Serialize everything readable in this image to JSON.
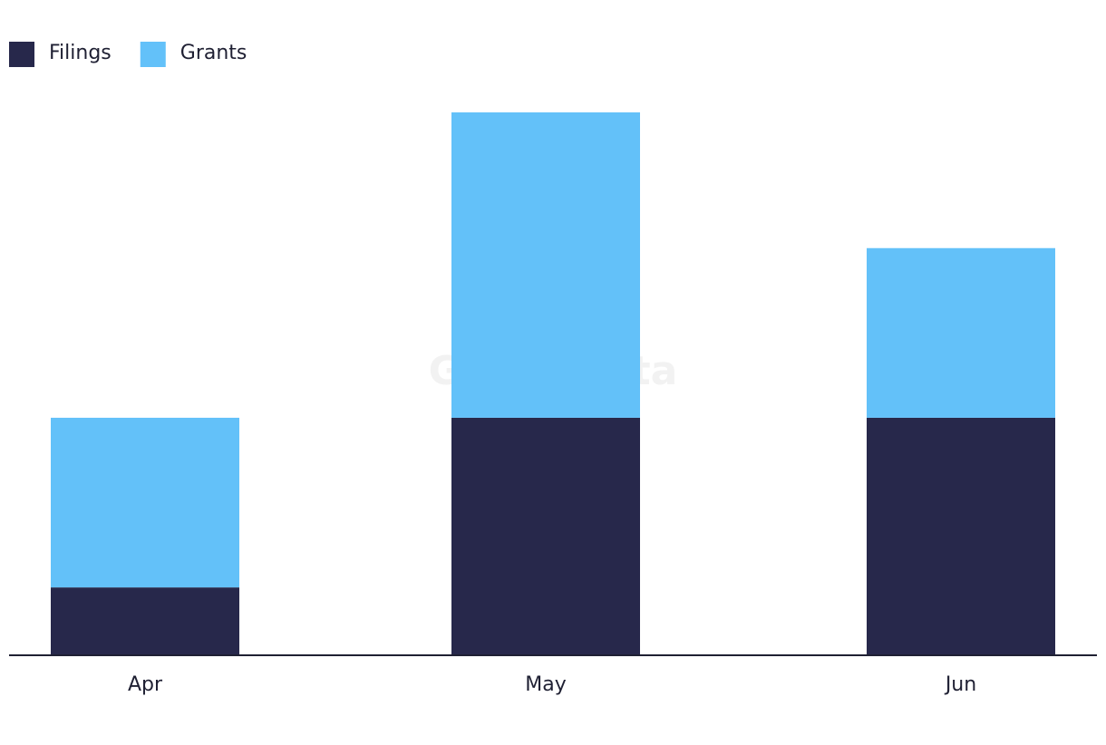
{
  "chart_data": {
    "type": "stacked-bar",
    "watermark": "GlobalData",
    "categories": [
      "Apr",
      "May",
      "Jun"
    ],
    "series": [
      {
        "name": "Filings",
        "color": "#27284b",
        "values": [
          2,
          7,
          7
        ]
      },
      {
        "name": "Grants",
        "color": "#63c1f9",
        "values": [
          5,
          9,
          5
        ]
      }
    ],
    "ylim": [
      0,
      16
    ]
  }
}
